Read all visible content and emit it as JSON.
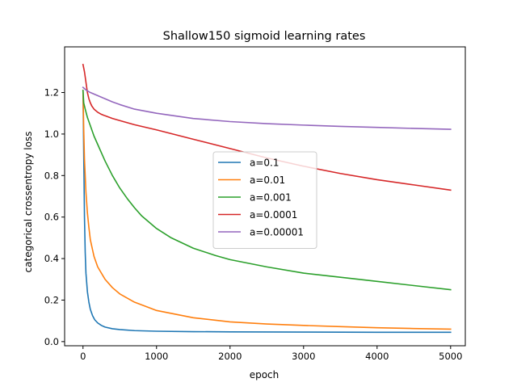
{
  "chart_data": {
    "type": "line",
    "title": "Shallow150 sigmoid learning rates",
    "xlabel": "epoch",
    "ylabel": "categorical crossentropy loss",
    "xlim": [
      -250,
      5200
    ],
    "ylim": [
      -0.02,
      1.42
    ],
    "xticks": [
      0,
      1000,
      2000,
      3000,
      4000,
      5000
    ],
    "xtick_labels": [
      "0",
      "1000",
      "2000",
      "3000",
      "4000",
      "5000"
    ],
    "yticks": [
      0.0,
      0.2,
      0.4,
      0.6,
      0.8,
      1.0,
      1.2
    ],
    "ytick_labels": [
      "0.0",
      "0.2",
      "0.4",
      "0.6",
      "0.8",
      "1.0",
      "1.2"
    ],
    "grid": false,
    "legend_position": "center-right",
    "series": [
      {
        "name": "a=0.1",
        "color": "#1f77b4",
        "x": [
          0,
          10,
          20,
          30,
          40,
          60,
          80,
          100,
          130,
          160,
          200,
          250,
          300,
          400,
          500,
          700,
          1000,
          1500,
          2000,
          3000,
          4000,
          5000
        ],
        "y": [
          1.21,
          0.9,
          0.6,
          0.43,
          0.33,
          0.24,
          0.19,
          0.155,
          0.125,
          0.105,
          0.09,
          0.078,
          0.07,
          0.062,
          0.058,
          0.053,
          0.05,
          0.048,
          0.047,
          0.046,
          0.045,
          0.045
        ]
      },
      {
        "name": "a=0.01",
        "color": "#ff7f0e",
        "x": [
          0,
          10,
          20,
          40,
          60,
          80,
          100,
          150,
          200,
          300,
          400,
          500,
          700,
          1000,
          1500,
          2000,
          2500,
          3000,
          3500,
          4000,
          4500,
          5000
        ],
        "y": [
          1.21,
          1.02,
          0.88,
          0.72,
          0.62,
          0.55,
          0.49,
          0.41,
          0.36,
          0.3,
          0.26,
          0.23,
          0.19,
          0.15,
          0.115,
          0.095,
          0.085,
          0.078,
          0.072,
          0.067,
          0.063,
          0.06
        ]
      },
      {
        "name": "a=0.001",
        "color": "#2ca02c",
        "x": [
          0,
          10,
          30,
          60,
          100,
          150,
          200,
          300,
          400,
          500,
          600,
          700,
          800,
          1000,
          1200,
          1500,
          1800,
          2000,
          2500,
          3000,
          3500,
          4000,
          4500,
          5000
        ],
        "y": [
          1.21,
          1.15,
          1.12,
          1.08,
          1.04,
          0.99,
          0.95,
          0.87,
          0.8,
          0.74,
          0.69,
          0.645,
          0.605,
          0.545,
          0.5,
          0.45,
          0.415,
          0.395,
          0.36,
          0.33,
          0.31,
          0.29,
          0.27,
          0.25
        ]
      },
      {
        "name": "a=0.0001",
        "color": "#d62728",
        "x": [
          0,
          20,
          40,
          60,
          80,
          100,
          120,
          150,
          200,
          250,
          300,
          400,
          500,
          700,
          1000,
          1500,
          2000,
          2500,
          3000,
          3500,
          4000,
          4500,
          5000
        ],
        "y": [
          1.335,
          1.3,
          1.25,
          1.2,
          1.17,
          1.15,
          1.135,
          1.12,
          1.105,
          1.095,
          1.088,
          1.075,
          1.065,
          1.045,
          1.02,
          0.975,
          0.93,
          0.885,
          0.845,
          0.81,
          0.78,
          0.755,
          0.73
        ]
      },
      {
        "name": "a=0.00001",
        "color": "#9467bd",
        "x": [
          0,
          50,
          100,
          200,
          300,
          400,
          500,
          700,
          1000,
          1500,
          2000,
          2500,
          3000,
          3500,
          4000,
          4500,
          5000
        ],
        "y": [
          1.225,
          1.21,
          1.2,
          1.185,
          1.17,
          1.155,
          1.142,
          1.12,
          1.1,
          1.075,
          1.06,
          1.05,
          1.043,
          1.037,
          1.032,
          1.027,
          1.023
        ]
      }
    ]
  }
}
